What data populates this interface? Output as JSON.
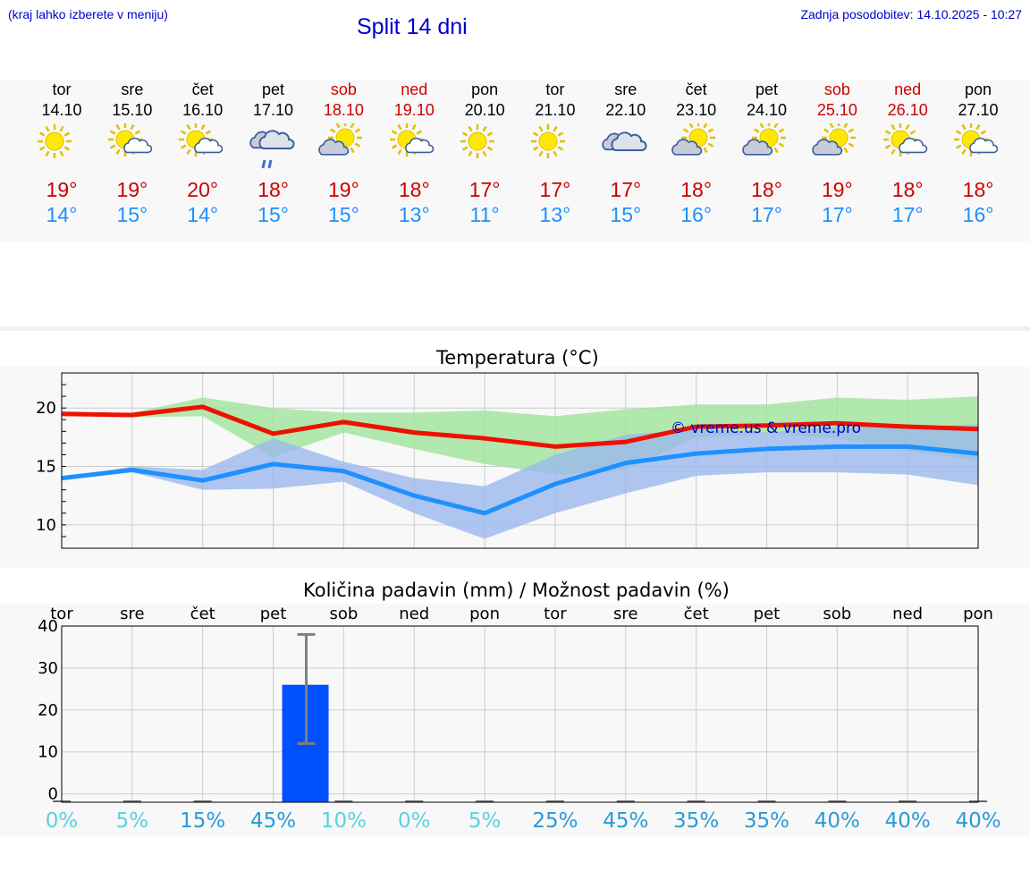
{
  "header": {
    "hint": "(kraj lahko izberete v meniju)",
    "title": "Split 14 dni",
    "updated": "Zadnja posodobitev: 14.10.2025 - 10:27"
  },
  "days": [
    {
      "name": "tor",
      "date": "14.10",
      "icon": "sun",
      "weekend": false,
      "max": "19°",
      "min": "14°"
    },
    {
      "name": "sre",
      "date": "15.10",
      "icon": "sun-cloud",
      "weekend": false,
      "max": "19°",
      "min": "15°"
    },
    {
      "name": "čet",
      "date": "16.10",
      "icon": "sun-cloud",
      "weekend": false,
      "max": "20°",
      "min": "14°"
    },
    {
      "name": "pet",
      "date": "17.10",
      "icon": "rain-cloud",
      "weekend": false,
      "max": "18°",
      "min": "15°"
    },
    {
      "name": "sob",
      "date": "18.10",
      "icon": "cloud-sun",
      "weekend": true,
      "max": "19°",
      "min": "15°"
    },
    {
      "name": "ned",
      "date": "19.10",
      "icon": "sun-cloud",
      "weekend": true,
      "max": "18°",
      "min": "13°"
    },
    {
      "name": "pon",
      "date": "20.10",
      "icon": "sun",
      "weekend": false,
      "max": "17°",
      "min": "11°"
    },
    {
      "name": "tor",
      "date": "21.10",
      "icon": "sun",
      "weekend": false,
      "max": "17°",
      "min": "13°"
    },
    {
      "name": "sre",
      "date": "22.10",
      "icon": "cloud",
      "weekend": false,
      "max": "17°",
      "min": "15°"
    },
    {
      "name": "čet",
      "date": "23.10",
      "icon": "cloud-sun",
      "weekend": false,
      "max": "18°",
      "min": "16°"
    },
    {
      "name": "pet",
      "date": "24.10",
      "icon": "cloud-sun",
      "weekend": false,
      "max": "18°",
      "min": "17°"
    },
    {
      "name": "sob",
      "date": "25.10",
      "icon": "cloud-sun",
      "weekend": true,
      "max": "19°",
      "min": "17°"
    },
    {
      "name": "ned",
      "date": "26.10",
      "icon": "sun-cloud",
      "weekend": true,
      "max": "18°",
      "min": "17°"
    },
    {
      "name": "pon",
      "date": "27.10",
      "icon": "sun-cloud",
      "weekend": false,
      "max": "18°",
      "min": "16°"
    }
  ],
  "colors": {
    "max_line": "#ee1100",
    "min_line": "#1e90ff",
    "max_band": "#9fe39a",
    "min_band": "#9bb8ee",
    "bar": "#0050ff",
    "errorbar": "#808080",
    "pct_low": "#5ad0e0",
    "pct_high": "#2a9ad6"
  },
  "chart_data": [
    {
      "type": "line",
      "title": "Temperatura (°C)",
      "watermark": "© vreme.us & vreme.pro",
      "x": [
        0,
        1,
        2,
        3,
        4,
        5,
        6,
        7,
        8,
        9,
        10,
        11,
        12,
        13
      ],
      "ylim": [
        8,
        23
      ],
      "yticks": [
        10,
        15,
        20
      ],
      "series": [
        {
          "name": "max",
          "values": [
            19.5,
            19.4,
            20.1,
            17.8,
            18.8,
            17.9,
            17.4,
            16.7,
            17.1,
            18.4,
            18.5,
            18.7,
            18.4,
            18.2
          ],
          "band_low": [
            19.5,
            19.2,
            19.3,
            15.8,
            17.9,
            16.5,
            15.2,
            14.3,
            14.7,
            17.5,
            17.8,
            17.4,
            16.3,
            15.5
          ],
          "band_high": [
            19.5,
            19.6,
            20.9,
            20.0,
            19.6,
            19.6,
            19.8,
            19.3,
            19.9,
            20.3,
            20.3,
            20.9,
            20.7,
            21.0
          ]
        },
        {
          "name": "min",
          "values": [
            14.0,
            14.7,
            13.8,
            15.2,
            14.6,
            12.5,
            11.0,
            13.5,
            15.3,
            16.1,
            16.5,
            16.7,
            16.7,
            16.1
          ],
          "band_low": [
            13.9,
            14.5,
            13.0,
            13.1,
            13.7,
            11.0,
            8.8,
            11.0,
            12.7,
            14.2,
            14.5,
            14.5,
            14.3,
            13.4
          ],
          "band_high": [
            14.0,
            15.0,
            14.7,
            17.4,
            15.4,
            14.0,
            13.3,
            16.0,
            17.7,
            18.2,
            17.9,
            18.4,
            18.4,
            18.6
          ]
        }
      ]
    },
    {
      "type": "bar",
      "title": "Količina padavin (mm) / Možnost padavin (%)",
      "categories": [
        "tor",
        "sre",
        "čet",
        "pet",
        "sob",
        "ned",
        "pon",
        "tor",
        "sre",
        "čet",
        "pet",
        "sob",
        "ned",
        "pon"
      ],
      "ylim": [
        -2,
        40
      ],
      "yticks": [
        0,
        10,
        20,
        30,
        40
      ],
      "values": [
        0,
        0,
        0,
        26,
        0,
        0,
        0,
        0,
        0,
        0,
        0,
        0,
        0,
        0
      ],
      "error_low": [
        0,
        0,
        0,
        12,
        0,
        0,
        0,
        0,
        0,
        0,
        0,
        0,
        0,
        0
      ],
      "error_high": [
        0,
        0,
        0,
        38,
        0,
        0,
        0,
        0,
        0,
        0,
        0,
        0,
        0,
        0
      ],
      "probability": [
        "0%",
        "5%",
        "15%",
        "45%",
        "10%",
        "0%",
        "5%",
        "25%",
        "45%",
        "35%",
        "35%",
        "40%",
        "40%",
        "40%"
      ]
    }
  ]
}
